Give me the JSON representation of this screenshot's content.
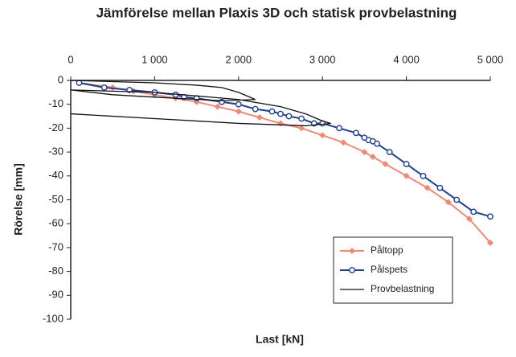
{
  "chart_data": {
    "type": "line",
    "title": "Jämförelse mellan Plaxis 3D och statisk provbelastning",
    "x_label": "Last [kN]",
    "y_label": "Rörelse [mm]",
    "xlim": [
      0,
      5000
    ],
    "ylim": [
      -100,
      0
    ],
    "xticks": [
      0,
      {
        "value": 1000,
        "label": "1 000"
      },
      {
        "value": 2000,
        "label": "2 000"
      },
      {
        "value": 3000,
        "label": "3 000"
      },
      {
        "value": 4000,
        "label": "4 000"
      },
      {
        "value": 5000,
        "label": "5 000"
      }
    ],
    "yticks": [
      0,
      -10,
      -20,
      -30,
      -40,
      -50,
      -60,
      -70,
      -80,
      -90,
      -100
    ],
    "x_axis_position": "top",
    "grid": false,
    "legend": "lower-right",
    "series": [
      {
        "name": "Påltopp",
        "color": "#f08a78",
        "marker": "diamond",
        "x": [
          100,
          500,
          750,
          1000,
          1250,
          1500,
          1750,
          2000,
          2250,
          2500,
          2750,
          3000,
          3250,
          3500,
          3600,
          3750,
          4000,
          4250,
          4500,
          4750,
          5000
        ],
        "values": [
          -1,
          -3,
          -4.5,
          -6,
          -7.5,
          -9,
          -11,
          -13,
          -15.5,
          -18,
          -20,
          -23,
          -26,
          -30,
          -32,
          -35,
          -40,
          -45,
          -51,
          -58,
          -68
        ]
      },
      {
        "name": "Pålspets",
        "color": "#1f3f8f",
        "marker": "circle",
        "x": [
          100,
          400,
          700,
          1000,
          1250,
          1350,
          1500,
          1800,
          2000,
          2200,
          2400,
          2500,
          2600,
          2750,
          2900,
          3000,
          3200,
          3400,
          3500,
          3550,
          3600,
          3650,
          3800,
          4000,
          4200,
          4400,
          4600,
          4800,
          5000
        ],
        "values": [
          -1,
          -3,
          -4,
          -5,
          -6,
          -7,
          -7.5,
          -9,
          -10,
          -12,
          -13,
          -14,
          -15,
          -16,
          -18,
          -18,
          -20,
          -22,
          -24,
          -25,
          -25.5,
          -26.5,
          -30,
          -35,
          -40,
          -45,
          -50,
          -55,
          -57
        ]
      },
      {
        "name": "Provbelastning",
        "color": "#111111",
        "x": [
          0,
          500,
          1000,
          1500,
          1800,
          2000,
          2200,
          1800,
          1000,
          500,
          0,
          1000,
          2000,
          2500,
          2800,
          3000,
          3100,
          2800,
          2000,
          1000,
          0
        ],
        "values": [
          0,
          -0.5,
          -1,
          -2,
          -3,
          -5,
          -8,
          -8.5,
          -7,
          -6,
          -4,
          -5,
          -8,
          -11,
          -14,
          -17,
          -18,
          -19,
          -18,
          -16,
          -14
        ]
      }
    ]
  }
}
